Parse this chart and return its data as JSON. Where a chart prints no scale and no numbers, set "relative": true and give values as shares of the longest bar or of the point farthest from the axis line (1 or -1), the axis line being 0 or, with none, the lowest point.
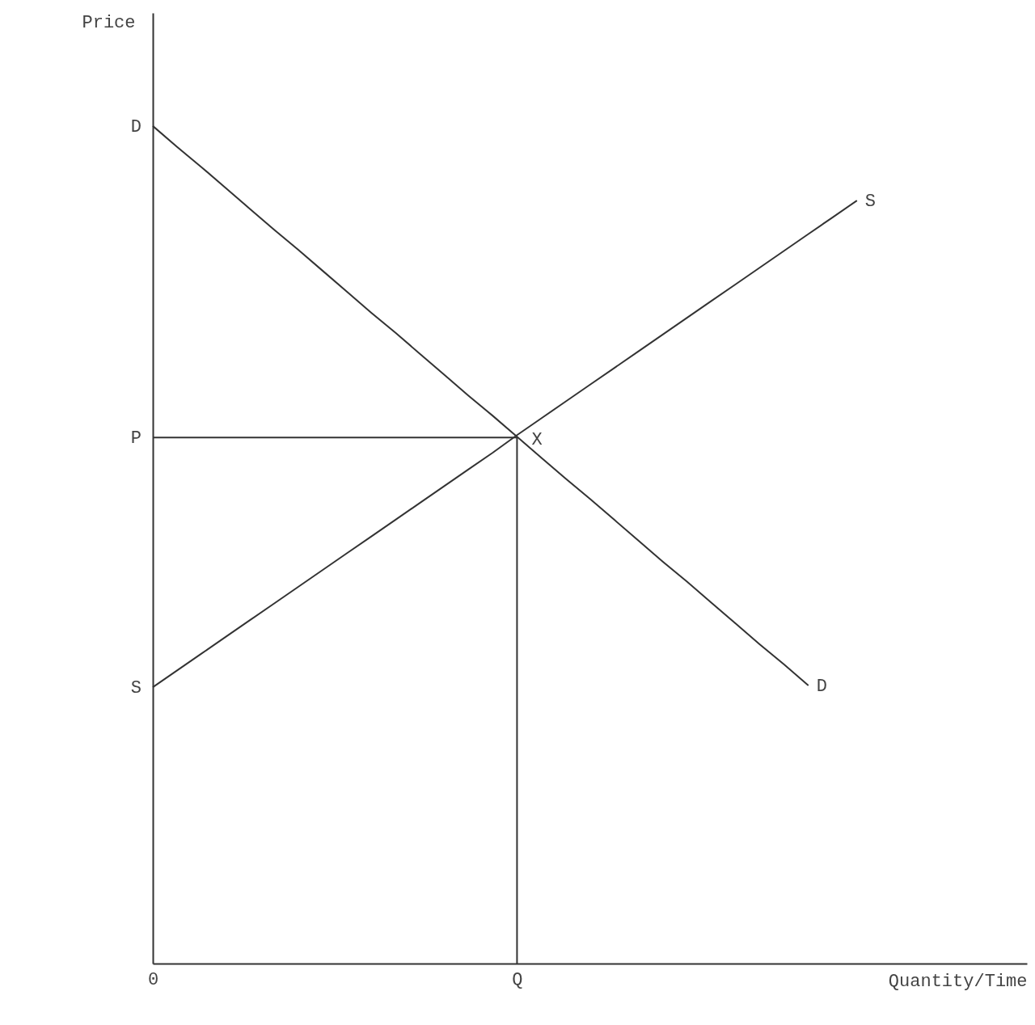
{
  "chart_data": {
    "type": "line",
    "relative": true,
    "xlabel": "Quantity/Time",
    "ylabel": "Price",
    "grid": false,
    "ylim": [
      0,
      1.135
    ],
    "categories": [
      "0",
      null,
      null,
      null,
      null,
      null,
      null,
      null,
      null,
      null,
      null,
      null,
      null,
      null,
      null,
      "Q",
      null,
      null,
      null,
      null,
      null,
      null,
      null,
      null,
      null,
      null,
      null,
      null,
      null,
      null,
      null,
      null,
      null,
      null,
      null,
      null,
      null
    ],
    "series": [
      {
        "name": "D",
        "color": "#333333",
        "values": [
          1,
          0.975,
          0.951,
          0.926,
          0.901,
          0.876,
          0.852,
          0.827,
          0.802,
          0.777,
          0.753,
          0.728,
          0.703,
          0.678,
          0.654,
          0.629,
          0.604,
          0.579,
          0.555,
          0.53,
          0.505,
          0.48,
          0.456,
          0.431,
          0.406,
          0.381,
          0.357,
          0.332,
          null,
          null,
          null,
          null,
          null,
          null,
          null,
          null,
          null
        ]
      },
      {
        "name": "S",
        "color": "#333333",
        "values": [
          0.33,
          0.35,
          0.37,
          0.39,
          0.41,
          0.43,
          0.45,
          0.47,
          0.49,
          0.51,
          0.53,
          0.55,
          0.57,
          0.59,
          0.61,
          0.631,
          0.651,
          0.671,
          0.691,
          0.711,
          0.731,
          0.751,
          0.771,
          0.791,
          0.811,
          0.831,
          0.851,
          0.871,
          0.891,
          0.911,
          null,
          null,
          null,
          null,
          null,
          null,
          null
        ]
      }
    ],
    "ref_lines": [
      {
        "axis": "y",
        "value": 0.628,
        "label": "P",
        "color": "#333333"
      },
      {
        "axis": "x",
        "value": "Q",
        "color": "#333333"
      }
    ],
    "annotations": [
      {
        "text": "X",
        "x": "Q",
        "y": 0.628
      },
      {
        "text": "D",
        "x": "0",
        "y": 1
      },
      {
        "text": "S",
        "x": "0",
        "y": 0.33
      }
    ]
  }
}
